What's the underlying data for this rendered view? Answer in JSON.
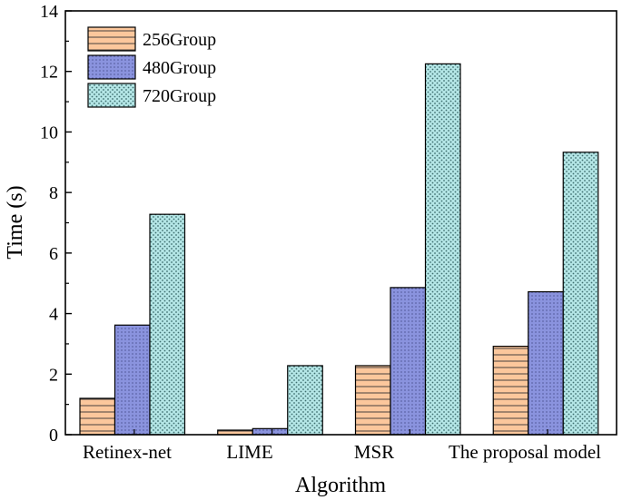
{
  "chart_data": {
    "type": "bar",
    "title": "",
    "xlabel": "Algorithm",
    "ylabel": "Time (s)",
    "ylim": [
      0,
      14
    ],
    "yticks": [
      "0",
      "2",
      "4",
      "6",
      "8",
      "10",
      "12",
      "14"
    ],
    "grid": false,
    "legend_position": "top-left",
    "categories": [
      "Retinex-net",
      "LIME",
      "MSR",
      "The proposal model"
    ],
    "series": [
      {
        "name": "256Group",
        "values": [
          1.2,
          0.15,
          2.28,
          2.92
        ],
        "color": "#FCC79C",
        "pattern": "horizontal-lines"
      },
      {
        "name": "480Group",
        "values": [
          3.62,
          0.2,
          4.86,
          4.72
        ],
        "color": "#8A93DE",
        "pattern": "fine-dots"
      },
      {
        "name": "720Group",
        "values": [
          7.28,
          2.28,
          12.25,
          9.33
        ],
        "color": "#B4E6E6",
        "pattern": "dots"
      }
    ]
  }
}
